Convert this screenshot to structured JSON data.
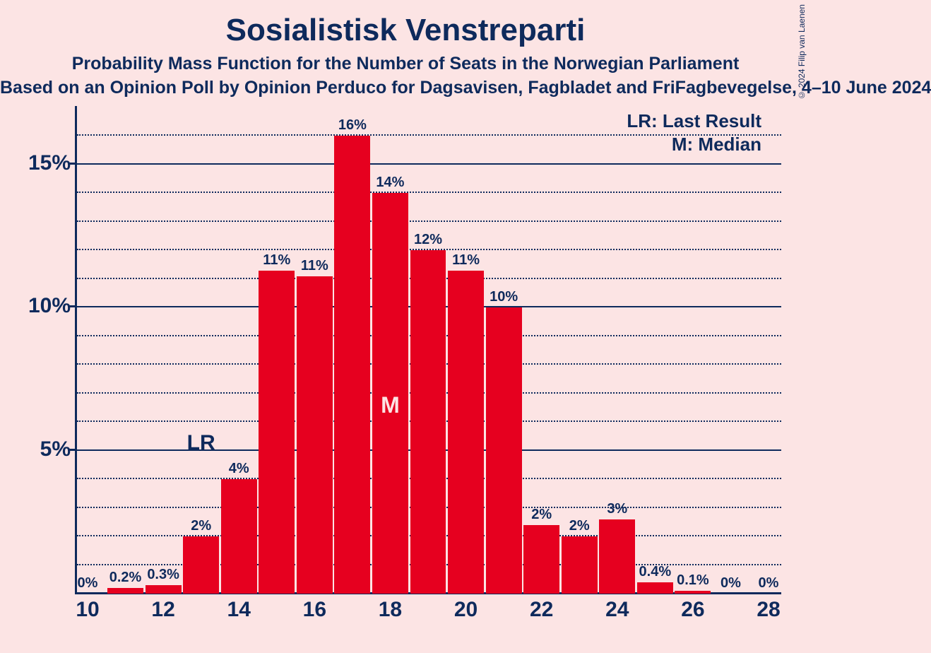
{
  "title": "Sosialistisk Venstreparti",
  "subtitle1": "Probability Mass Function for the Number of Seats in the Norwegian Parliament",
  "subtitle2": "Based on an Opinion Poll by Opinion Perduco for Dagsavisen, Fagbladet and FriFagbevegelse, 4–10 June 2024",
  "copyright": "© 2024 Filip van Laenen",
  "legend": {
    "lr": "LR: Last Result",
    "m": "M: Median"
  },
  "chart": {
    "type": "bar",
    "background_color": "#fce4e4",
    "text_color": "#0e2a5c",
    "bar_color": "#e6001f",
    "grid_color": "#0e2a5c",
    "title_fontsize": 44,
    "subtitle_fontsize": 25,
    "axis_fontsize": 30,
    "label_fontsize": 20,
    "xlim": [
      10,
      28
    ],
    "ylim": [
      0,
      17
    ],
    "y_ticks": [
      5,
      10,
      15
    ],
    "y_minor_ticks": [
      1,
      2,
      3,
      4,
      6,
      7,
      8,
      9,
      11,
      12,
      13,
      14,
      16
    ],
    "x_ticks": [
      10,
      12,
      14,
      16,
      18,
      20,
      22,
      24,
      26,
      28
    ],
    "bar_width": 0.95,
    "bars": [
      {
        "x": 10,
        "value": 0,
        "label": "0%"
      },
      {
        "x": 11,
        "value": 0.2,
        "label": "0.2%"
      },
      {
        "x": 12,
        "value": 0.3,
        "label": "0.3%"
      },
      {
        "x": 13,
        "value": 2,
        "label": "2%"
      },
      {
        "x": 14,
        "value": 4,
        "label": "4%"
      },
      {
        "x": 15,
        "value": 11.3,
        "label": "11%"
      },
      {
        "x": 16,
        "value": 11.1,
        "label": "11%"
      },
      {
        "x": 17,
        "value": 16,
        "label": "16%"
      },
      {
        "x": 18,
        "value": 14,
        "label": "14%"
      },
      {
        "x": 19,
        "value": 12,
        "label": "12%"
      },
      {
        "x": 20,
        "value": 11.3,
        "label": "11%"
      },
      {
        "x": 21,
        "value": 10,
        "label": "10%"
      },
      {
        "x": 22,
        "value": 2.4,
        "label": "2%"
      },
      {
        "x": 23,
        "value": 2,
        "label": "2%"
      },
      {
        "x": 24,
        "value": 2.6,
        "label": "3%"
      },
      {
        "x": 25,
        "value": 0.4,
        "label": "0.4%"
      },
      {
        "x": 26,
        "value": 0.1,
        "label": "0.1%"
      },
      {
        "x": 27,
        "value": 0,
        "label": "0%"
      },
      {
        "x": 28,
        "value": 0,
        "label": "0%"
      }
    ],
    "lr_marker": {
      "x": 13,
      "label": "LR"
    },
    "median_marker": {
      "x": 18,
      "label": "M"
    }
  }
}
